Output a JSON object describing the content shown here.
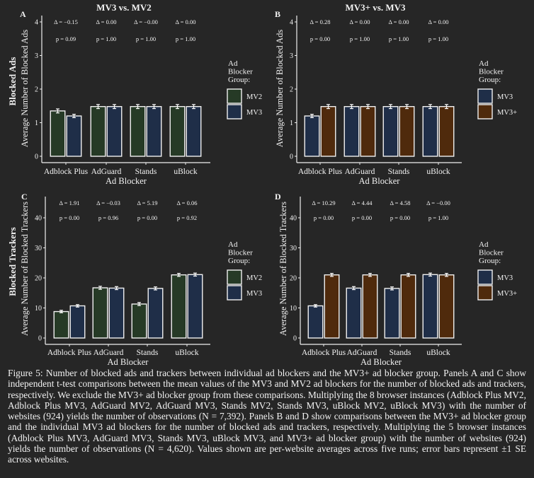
{
  "colors": {
    "background": "#262626",
    "MV2": "#263a26",
    "MV3": "#1f2e48",
    "MV3+": "#4f2a0c",
    "outline": "#f0f0f0"
  },
  "chart_data": [
    {
      "type": "bar",
      "panel": "A",
      "title": "MV3 vs. MV2",
      "row_label": "Blocked Ads",
      "ylabel": "Average Number of Blocked Ads",
      "xlabel": "Ad Blocker",
      "categories": [
        "Adblock Plus",
        "AdGuard",
        "Stands",
        "uBlock"
      ],
      "yticks": [
        0,
        1,
        2,
        3,
        4
      ],
      "ylim": [
        0,
        4.2
      ],
      "grid": false,
      "legend_title": [
        "Ad",
        "Blocker",
        "Group:"
      ],
      "legend_position": "right",
      "series": [
        {
          "name": "MV2",
          "color": "#263a26",
          "values": [
            1.35,
            1.48,
            1.48,
            1.48
          ],
          "se": [
            0.06,
            0.06,
            0.06,
            0.06
          ]
        },
        {
          "name": "MV3",
          "color": "#1f2e48",
          "values": [
            1.2,
            1.48,
            1.48,
            1.48
          ],
          "se": [
            0.05,
            0.06,
            0.06,
            0.06
          ]
        }
      ],
      "delta": [
        "Δ = −0.15",
        "Δ = 0.00",
        "Δ = −0.00",
        "Δ = 0.00"
      ],
      "p": [
        "p = 0.09",
        "p = 1.00",
        "p = 1.00",
        "p = 1.00"
      ]
    },
    {
      "type": "bar",
      "panel": "B",
      "title": "MV3+ vs. MV3",
      "row_label": "",
      "ylabel": "Average Number of Blocked Ads",
      "xlabel": "Ad Blocker",
      "categories": [
        "Adblock Plus",
        "AdGuard",
        "Stands",
        "uBlock"
      ],
      "yticks": [
        0,
        1,
        2,
        3,
        4
      ],
      "ylim": [
        0,
        4.2
      ],
      "grid": false,
      "legend_title": [
        "Ad",
        "Blocker",
        "Group:"
      ],
      "legend_position": "right",
      "series": [
        {
          "name": "MV3",
          "color": "#1f2e48",
          "values": [
            1.2,
            1.48,
            1.48,
            1.48
          ],
          "se": [
            0.05,
            0.06,
            0.06,
            0.06
          ]
        },
        {
          "name": "MV3+",
          "color": "#4f2a0c",
          "values": [
            1.48,
            1.48,
            1.48,
            1.48
          ],
          "se": [
            0.06,
            0.06,
            0.06,
            0.06
          ]
        }
      ],
      "delta": [
        "Δ = 0.28",
        "Δ = 0.00",
        "Δ = 0.00",
        "Δ = 0.00"
      ],
      "p": [
        "p = 0.00",
        "p = 1.00",
        "p = 1.00",
        "p = 1.00"
      ]
    },
    {
      "type": "bar",
      "panel": "C",
      "title": "",
      "row_label": "Blocked Trackers",
      "ylabel": "Average Number of Blocked Trackers",
      "xlabel": "Ad Blocker",
      "categories": [
        "Adblock Plus",
        "AdGuard",
        "Stands",
        "uBlock"
      ],
      "yticks": [
        0,
        10,
        20,
        30,
        40
      ],
      "ylim": [
        0,
        46
      ],
      "grid": false,
      "legend_title": [
        "Ad",
        "Blocker",
        "Group:"
      ],
      "legend_position": "right",
      "series": [
        {
          "name": "MV2",
          "color": "#263a26",
          "values": [
            8.8,
            16.7,
            11.3,
            21.0
          ],
          "se": [
            0.4,
            0.5,
            0.5,
            0.5
          ]
        },
        {
          "name": "MV3",
          "color": "#1f2e48",
          "values": [
            10.7,
            16.6,
            16.5,
            21.1
          ],
          "se": [
            0.4,
            0.5,
            0.5,
            0.5
          ]
        }
      ],
      "delta": [
        "Δ = 1.91",
        "Δ = −0.03",
        "Δ = 5.19",
        "Δ = 0.06"
      ],
      "p": [
        "p = 0.00",
        "p = 0.96",
        "p = 0.00",
        "p = 0.92"
      ]
    },
    {
      "type": "bar",
      "panel": "D",
      "title": "",
      "row_label": "",
      "ylabel": "Average Number of Blocked Trackers",
      "xlabel": "Ad Blocker",
      "categories": [
        "Adblock Plus",
        "AdGuard",
        "Stands",
        "uBlock"
      ],
      "yticks": [
        0,
        10,
        20,
        30,
        40
      ],
      "ylim": [
        0,
        46
      ],
      "grid": false,
      "legend_title": [
        "Ad",
        "Blocker",
        "Group:"
      ],
      "legend_position": "right",
      "series": [
        {
          "name": "MV3",
          "color": "#1f2e48",
          "values": [
            10.7,
            16.6,
            16.5,
            21.1
          ],
          "se": [
            0.4,
            0.5,
            0.5,
            0.5
          ]
        },
        {
          "name": "MV3+",
          "color": "#4f2a0c",
          "values": [
            21.0,
            21.0,
            21.0,
            21.0
          ],
          "se": [
            0.5,
            0.5,
            0.5,
            0.5
          ]
        }
      ],
      "delta": [
        "Δ = 10.29",
        "Δ = 4.44",
        "Δ = 4.58",
        "Δ = −0.00"
      ],
      "p": [
        "p = 0.00",
        "p = 0.00",
        "p = 0.00",
        "p = 1.00"
      ]
    }
  ],
  "caption": "Figure 5: Number of blocked ads and trackers between individual ad blockers and the MV3+ ad blocker group. Panels A and C show independent t-test comparisons between the mean values of the MV3 and MV2 ad blockers for the number of blocked ads and trackers, respectively. We exclude the MV3+ ad blocker group from these comparisons. Multiplying the 8 browser instances (Adblock Plus MV2, Adblock Plus MV3, AdGuard MV2, AdGuard MV3, Stands MV2, Stands MV3, uBlock MV2, uBlock MV3) with the number of websites (924) yields the number of observations (N = 7,392). Panels B and D show comparisons between the MV3+ ad blocker group and the individual MV3 ad blockers for the number of blocked ads and trackers, respectively. Multiplying the 5 browser instances (Adblock Plus MV3, AdGuard MV3, Stands MV3, uBlock MV3, and MV3+ ad blocker group) with the number of websites (924) yields the number of observations (N = 4,620). Values shown are per-website averages across five runs; error bars represent ±1 SE across websites."
}
